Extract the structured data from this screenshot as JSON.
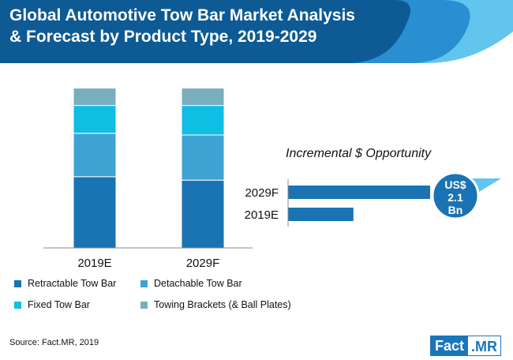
{
  "header": {
    "title_line1": "Global Automotive Tow Bar Market Analysis",
    "title_line2": "& Forecast by Product Type, 2019-2029"
  },
  "colors": {
    "header_dark": "#0d5a94",
    "header_mid": "#2a8fd0",
    "header_light": "#62c5ee",
    "retractable": "#1a73b3",
    "detachable": "#3ea3d3",
    "fixed": "#10bde3",
    "towing": "#79aebd",
    "incremental": "#1a73b3"
  },
  "chart_data": [
    {
      "type": "bar",
      "stacked": true,
      "categories": [
        "2019E",
        "2029F"
      ],
      "series": [
        {
          "name": "Retractable Tow Bar",
          "values": [
            41,
            39
          ]
        },
        {
          "name": "Detachable Tow Bar",
          "values": [
            25,
            26
          ]
        },
        {
          "name": "Fixed Tow Bar",
          "values": [
            16,
            17
          ]
        },
        {
          "name": "Towing Brackets (& Ball Plates)",
          "values": [
            10,
            10
          ]
        }
      ],
      "ylim": [
        0,
        100
      ],
      "title": "",
      "xlabel": "",
      "ylabel": "",
      "legend": "bottom"
    },
    {
      "type": "bar",
      "orientation": "horizontal",
      "title": "Incremental $ Opportunity",
      "categories": [
        "2029F",
        "2019E"
      ],
      "values": [
        10,
        4.6
      ],
      "xlim": [
        0,
        10
      ],
      "annotation": {
        "line1": "US$",
        "line2": "2.1",
        "line3": "Bn"
      }
    }
  ],
  "legend": {
    "items": [
      {
        "label": "Retractable Tow Bar",
        "color": "#1a73b3"
      },
      {
        "label": "Detachable Tow Bar",
        "color": "#3ea3d3"
      },
      {
        "label": "Fixed Tow Bar",
        "color": "#10bde3"
      },
      {
        "label": "Towing Brackets (& Ball Plates)",
        "color": "#79aebd"
      }
    ]
  },
  "footer": {
    "source": "Source: Fact.MR, 2019",
    "logo_part1": "Fact",
    "logo_part2": ".MR"
  }
}
